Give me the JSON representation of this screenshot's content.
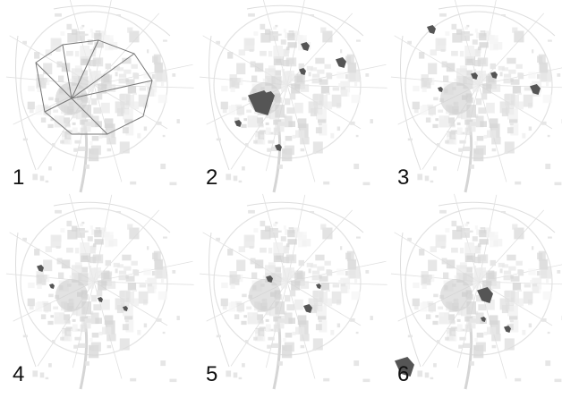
{
  "panels": [
    {
      "label": "1"
    },
    {
      "label": "2"
    },
    {
      "label": "3"
    },
    {
      "label": "4"
    },
    {
      "label": "5"
    },
    {
      "label": "6"
    }
  ]
}
